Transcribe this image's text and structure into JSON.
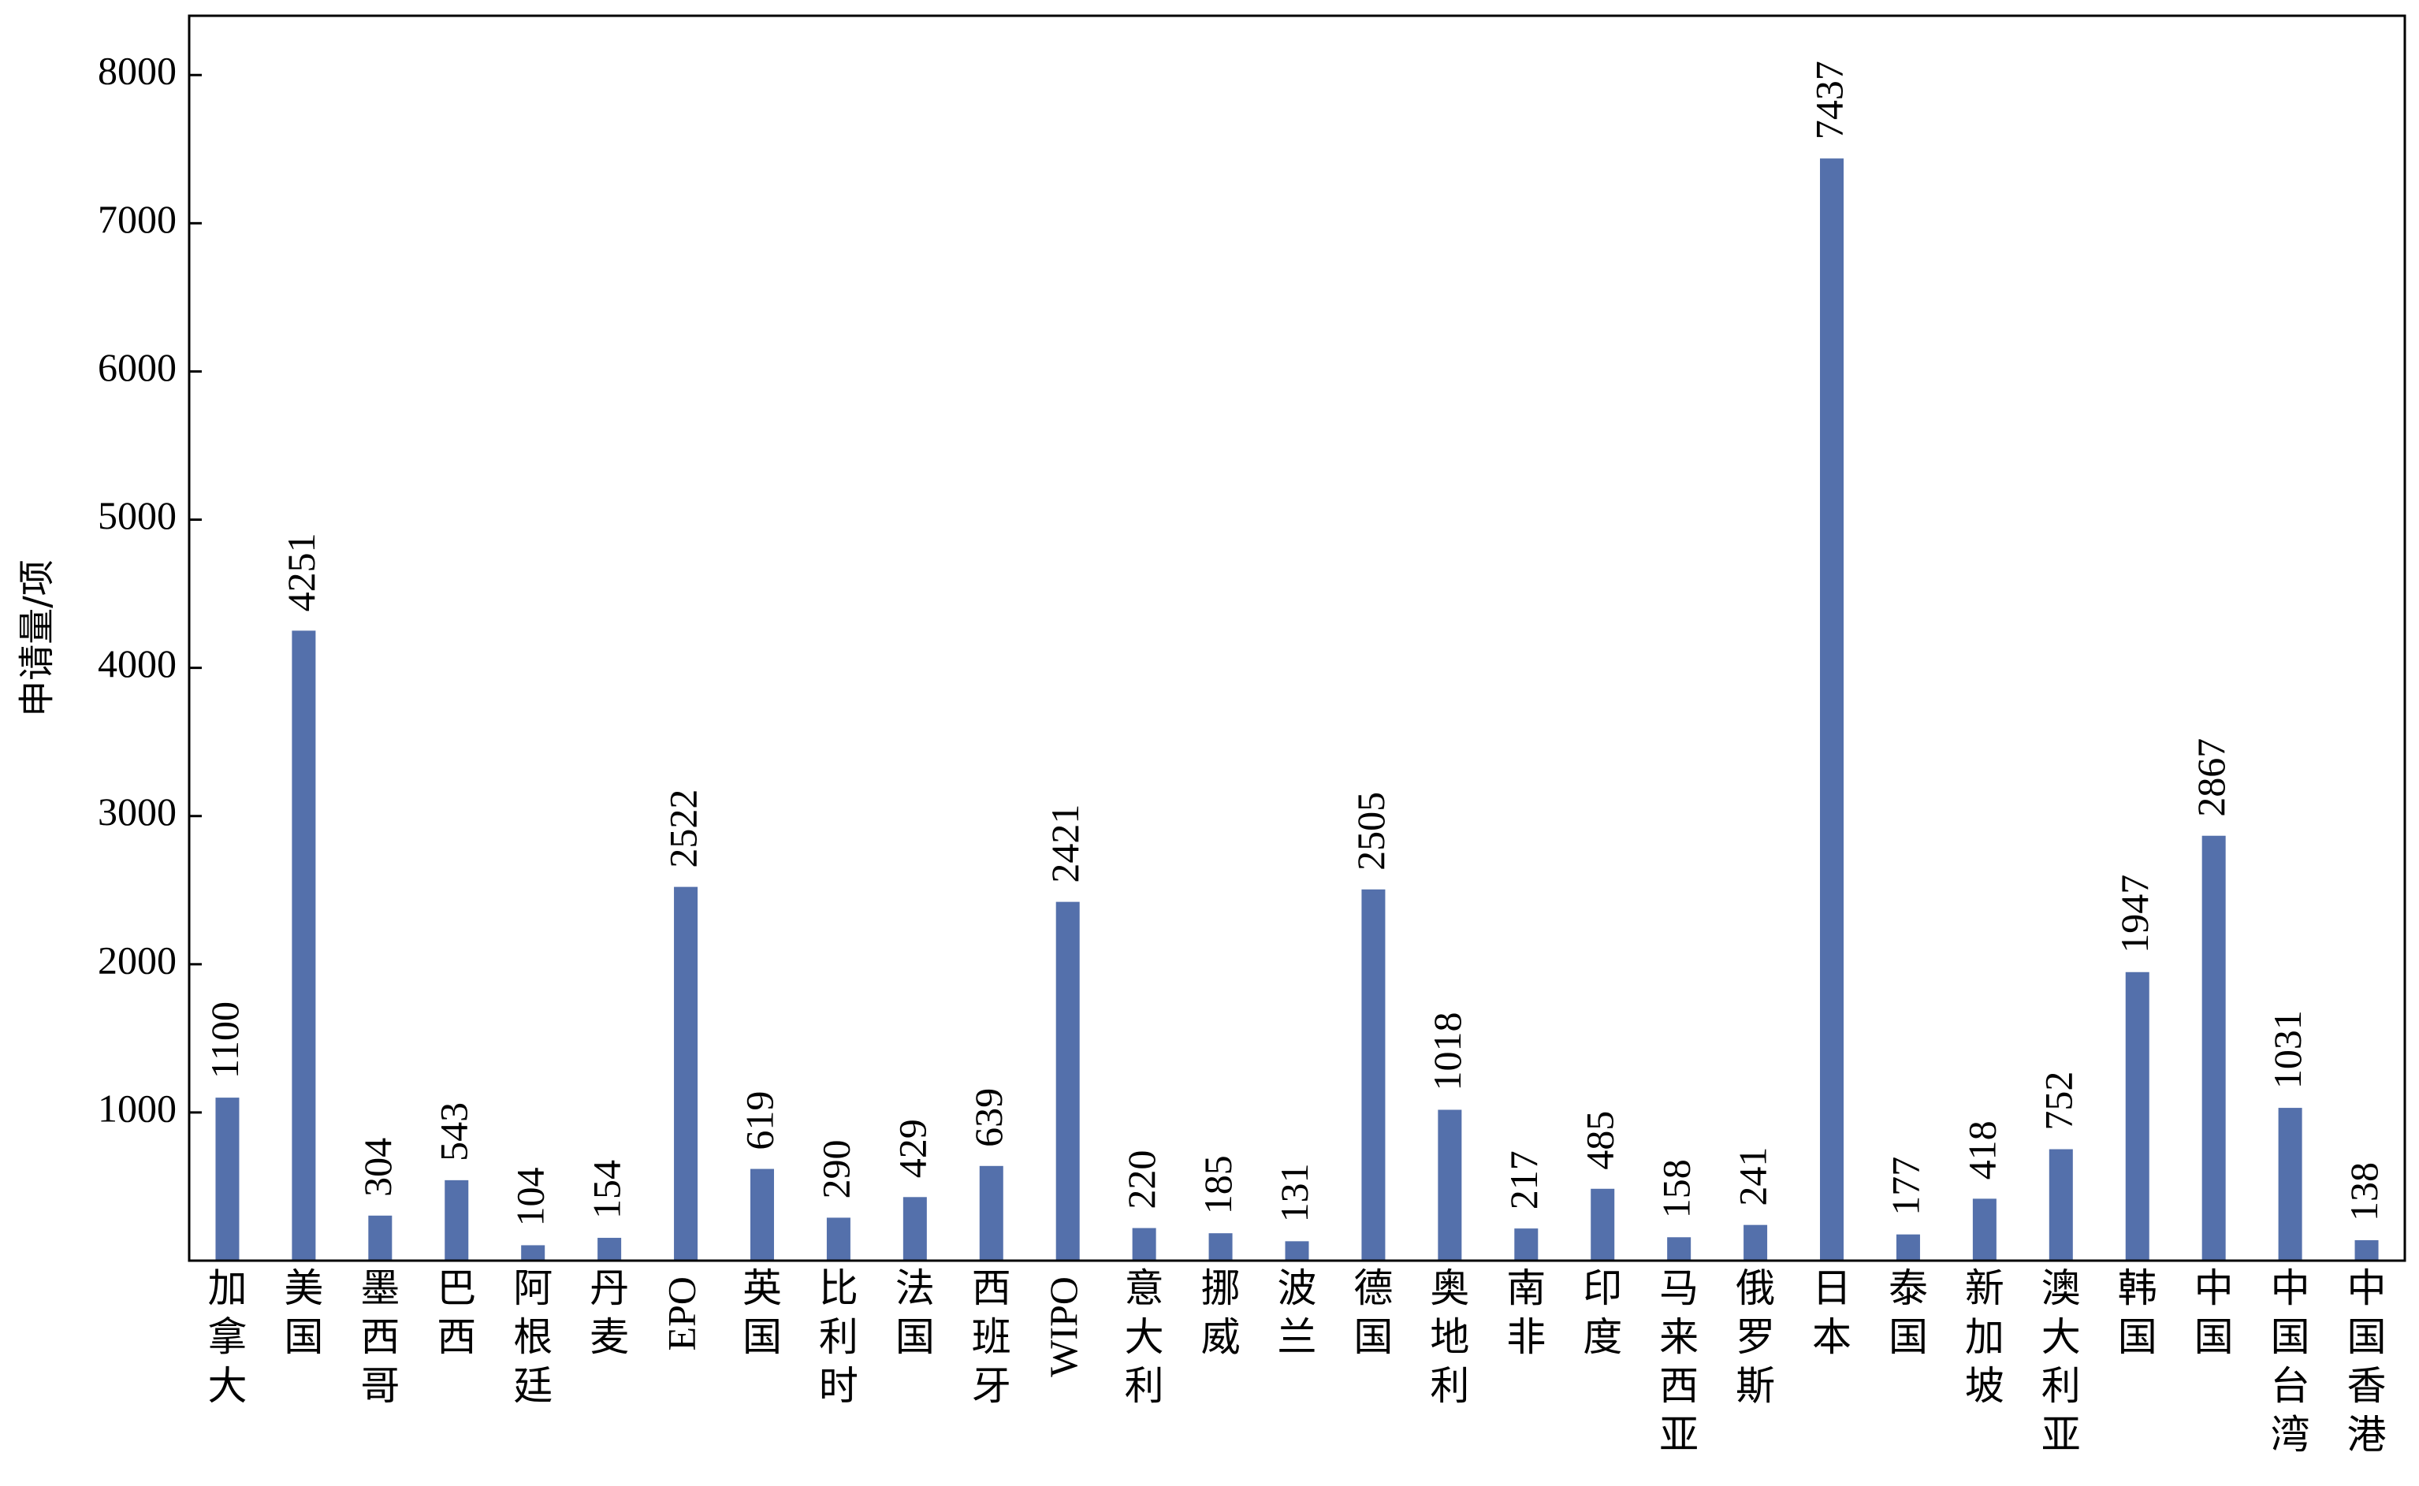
{
  "chart_data": {
    "type": "bar",
    "title": "",
    "xlabel": "",
    "ylabel": "申请量/项",
    "ylim": [
      0,
      8400
    ],
    "yticks": [
      1000,
      2000,
      3000,
      4000,
      5000,
      6000,
      7000,
      8000
    ],
    "grid": false,
    "legend": "none",
    "bar_color": "#5470ab",
    "categories": [
      "加拿大",
      "美国",
      "墨西哥",
      "巴西",
      "阿根廷",
      "丹麦",
      "EPO",
      "英国",
      "比利时",
      "法国",
      "西班牙",
      "WIPO",
      "意大利",
      "挪威",
      "波兰",
      "德国",
      "奥地利",
      "南非",
      "印度",
      "马来西亚",
      "俄罗斯",
      "日本",
      "泰国",
      "新加坡",
      "澳大利亚",
      "韩国",
      "中国",
      "中国台湾",
      "中国香港"
    ],
    "values": [
      1100,
      4251,
      304,
      543,
      104,
      154,
      2522,
      619,
      290,
      429,
      639,
      2421,
      220,
      185,
      131,
      2505,
      1018,
      217,
      485,
      158,
      241,
      7437,
      177,
      418,
      752,
      1947,
      2867,
      1031,
      138
    ],
    "value_labels": [
      "1100",
      "4251",
      "304",
      "543",
      "104",
      "154",
      "2522",
      "619",
      "290",
      "429",
      "639",
      "2421",
      "220",
      "185",
      "131",
      "2505",
      "1018",
      "217",
      "485",
      "158",
      "241",
      "7437",
      "177",
      "418",
      "752",
      "1947",
      "2867",
      "1031",
      "138"
    ]
  }
}
